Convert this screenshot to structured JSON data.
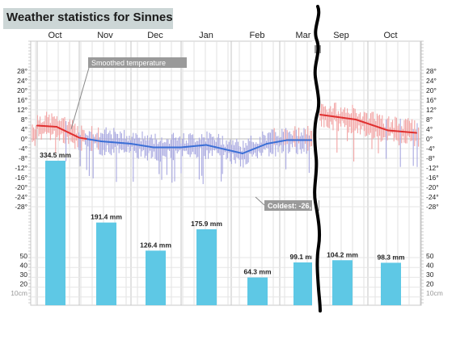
{
  "page": {
    "title": "Weather statistics for Sinnes"
  },
  "chart_data": {
    "type": "line",
    "title": "Weather statistics for Sinnes",
    "colors": {
      "warm_line": "#e03030",
      "cold_line": "#3b6fd6",
      "warm_bars": "#f2a3a3",
      "cold_bars": "#a8a8e0",
      "precip_bars": "#5ec8e5",
      "annotation_box": "#9a9a9a",
      "panel": "#ccd6d6"
    },
    "months_left": [
      "Oct",
      "Nov",
      "Dec",
      "Jan",
      "Feb",
      "Mar"
    ],
    "months_right": [
      "Sep",
      "Oct"
    ],
    "temperature_ticks": [
      "28°",
      "24°",
      "20°",
      "16°",
      "12°",
      "8°",
      "4°",
      "0°",
      "-4°",
      "-8°",
      "-12°",
      "-16°",
      "-20°",
      "-24°",
      "-28°"
    ],
    "precip_ticks": [
      "50",
      "40",
      "30",
      "20",
      "10cm"
    ],
    "precip_ticks_right": [
      "50",
      "40",
      "30",
      "20",
      "10cm"
    ],
    "temperature_range": [
      -28,
      28
    ],
    "smoothed_temperature": {
      "name": "Smoothed temperature",
      "x": [
        "Oct",
        "Oct-mid",
        "Nov",
        "Nov-mid",
        "Dec",
        "Dec-mid",
        "Jan",
        "Jan-mid",
        "Feb",
        "Feb-mid",
        "Mar",
        "Mar-end",
        "Sep",
        "Sep-mid",
        "Oct",
        "Oct-mid"
      ],
      "values": [
        5.5,
        5,
        0.5,
        -1,
        -2,
        -3.5,
        -3.5,
        -2.5,
        -6,
        -2,
        -0.5,
        -0.5,
        10,
        8,
        3.5,
        2.5
      ]
    },
    "monthly_precipitation": {
      "categories": [
        "Oct",
        "Nov",
        "Dec",
        "Jan",
        "Feb",
        "Mar",
        "Sep",
        "Oct"
      ],
      "values": [
        334.5,
        191.4,
        126.4,
        175.9,
        64.3,
        99.1,
        104.2,
        98.3
      ],
      "labels": [
        "334.5 mm",
        "191.4 mm",
        "126.4 mm",
        "175.9 mm",
        "64.3 mm",
        "99.1 mm",
        "104.2 mm",
        "98.3 mm"
      ]
    },
    "annotations": {
      "smoothed_label": "Smoothed temperature",
      "coldest_label": "Coldest: -26,"
    },
    "grid": true
  }
}
